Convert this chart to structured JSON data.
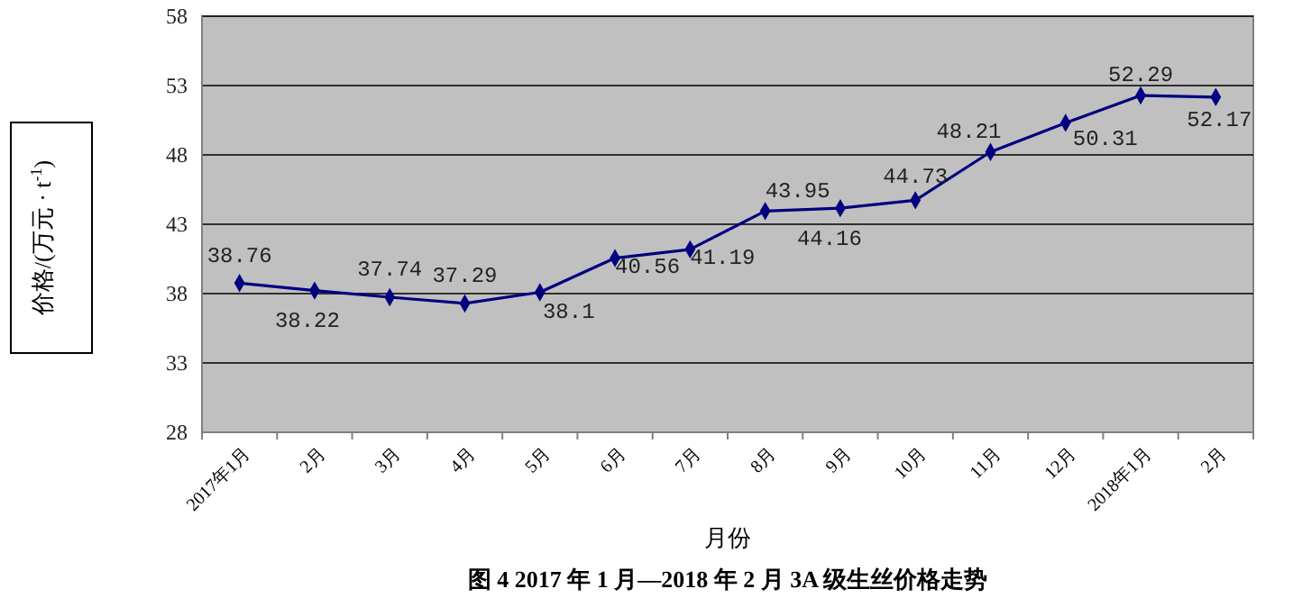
{
  "chart_data": {
    "type": "line",
    "title": "图 4  2017 年 1 月—2018 年 2 月 3A 级生丝价格走势",
    "xlabel": "月份",
    "ylabel": "价格/(万元 · t$^{-1}$)",
    "categories": [
      "2017年1月",
      "2月",
      "3月",
      "4月",
      "5月",
      "6月",
      "7月",
      "8月",
      "9月",
      "10月",
      "11月",
      "12月",
      "2018年1月",
      "2月"
    ],
    "series": [
      {
        "color": "#000080",
        "values": [
          38.76,
          38.22,
          37.74,
          37.29,
          38.1,
          40.56,
          41.19,
          43.95,
          44.16,
          44.73,
          48.21,
          50.31,
          52.29,
          52.17
        ]
      }
    ],
    "ylim": [
      28,
      58
    ],
    "yticks": [
      28,
      33,
      38,
      43,
      48,
      53,
      58
    ],
    "grid": "y",
    "marker": "diamond",
    "line_style": "solid",
    "data_labels": true
  }
}
